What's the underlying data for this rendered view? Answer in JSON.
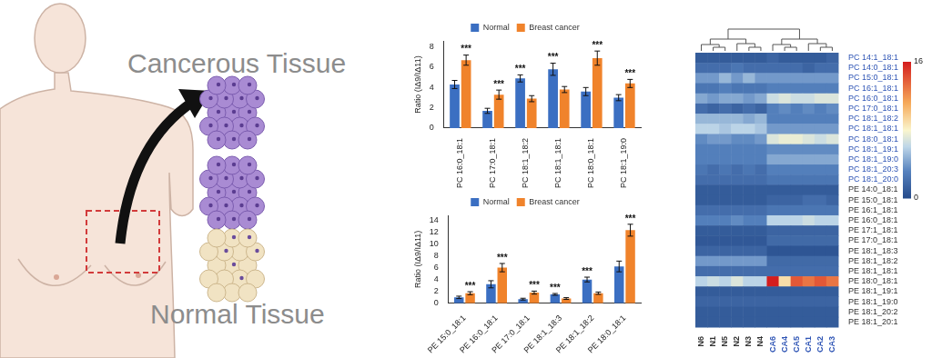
{
  "illustration": {
    "top_label": "Cancerous Tissue",
    "bottom_label": "Normal Tissue"
  },
  "chart_data": [
    {
      "type": "bar",
      "y_label": "Ratio (IΔ9/IΔ11)",
      "categories": [
        "PC 16:0_18:1",
        "PC 17:0_18:1",
        "PC 18:1_18:2",
        "PC 18:1_18:1",
        "PC 18:0_18:1",
        "PC 18:1_19:0"
      ],
      "series": [
        {
          "name": "Normal",
          "color": "#3b6fc2",
          "values": [
            4.3,
            1.7,
            4.9,
            5.8,
            3.6,
            3.0
          ],
          "errors": [
            0.4,
            0.25,
            0.35,
            0.6,
            0.4,
            0.3
          ]
        },
        {
          "name": "Breast cancer",
          "color": "#f0832b",
          "values": [
            6.7,
            3.3,
            2.9,
            3.8,
            6.9,
            4.4
          ],
          "errors": [
            0.5,
            0.45,
            0.3,
            0.3,
            0.7,
            0.4
          ]
        }
      ],
      "annotations": [
        "***",
        "***",
        "***",
        "***",
        "***",
        "***"
      ],
      "ylim": [
        0,
        8.6
      ],
      "yticks": [
        0,
        2,
        4,
        6,
        8
      ],
      "grid": false,
      "legend": "top"
    },
    {
      "type": "bar",
      "y_label": "Ratio (IΔ9/IΔ11)",
      "categories": [
        "PE 15:0_18:1",
        "PE 16:0_18:1",
        "PE 17:0_18:1",
        "PE 18:1_18:3",
        "PE 18:1_18:2",
        "PE 18:0_18:1"
      ],
      "series": [
        {
          "name": "Normal",
          "color": "#3b6fc2",
          "values": [
            1.0,
            3.2,
            0.7,
            1.5,
            4.0,
            6.2
          ],
          "errors": [
            0.2,
            0.6,
            0.15,
            0.15,
            0.4,
            0.9
          ]
        },
        {
          "name": "Breast cancer",
          "color": "#f0832b",
          "values": [
            1.7,
            6.0,
            1.8,
            0.8,
            1.7,
            12.3
          ],
          "errors": [
            0.25,
            0.7,
            0.25,
            0.15,
            0.2,
            1.0
          ]
        }
      ],
      "annotations": [
        "***",
        "***",
        "***",
        "***",
        "***",
        "***"
      ],
      "ylim": [
        0,
        14.8
      ],
      "yticks": [
        0,
        2,
        4,
        6,
        8,
        10,
        12,
        14
      ],
      "grid": false,
      "legend": "top"
    },
    {
      "type": "heatmap",
      "columns": [
        {
          "label": "N6",
          "color": "#333333"
        },
        {
          "label": "N1",
          "color": "#333333"
        },
        {
          "label": "N5",
          "color": "#333333"
        },
        {
          "label": "N2",
          "color": "#333333"
        },
        {
          "label": "N3",
          "color": "#333333"
        },
        {
          "label": "N4",
          "color": "#333333"
        },
        {
          "label": "CA6",
          "color": "#2f55b5"
        },
        {
          "label": "CA4",
          "color": "#2f55b5"
        },
        {
          "label": "CA5",
          "color": "#2f55b5"
        },
        {
          "label": "CA1",
          "color": "#2f55b5"
        },
        {
          "label": "CA2",
          "color": "#2f55b5"
        },
        {
          "label": "CA3",
          "color": "#2f55b5"
        }
      ],
      "rows": [
        {
          "label": "PC 14:1_18:1",
          "color": "#2f55b5"
        },
        {
          "label": "PC 14:0_18:1",
          "color": "#2f55b5"
        },
        {
          "label": "PC 15:0_18:1",
          "color": "#2f55b5"
        },
        {
          "label": "PC 16:1_18:1",
          "color": "#2f55b5"
        },
        {
          "label": "PC 16:0_18:1",
          "color": "#2f55b5"
        },
        {
          "label": "PC 17:0_18:1",
          "color": "#2f55b5"
        },
        {
          "label": "PC 18:1_18:2",
          "color": "#2f55b5"
        },
        {
          "label": "PC 18:1_18:1",
          "color": "#2f55b5"
        },
        {
          "label": "PC 18:0_18:1",
          "color": "#2f55b5"
        },
        {
          "label": "PC 18:1_19:1",
          "color": "#2f55b5"
        },
        {
          "label": "PC 18:1_19:0",
          "color": "#2f55b5"
        },
        {
          "label": "PC 18:1_20:3",
          "color": "#2f55b5"
        },
        {
          "label": "PC 18:1_20:0",
          "color": "#2f55b5"
        },
        {
          "label": "PE 14:0_18:1",
          "color": "#333333"
        },
        {
          "label": "PE 15:0_18:1",
          "color": "#333333"
        },
        {
          "label": "PE 16:1_18:1",
          "color": "#333333"
        },
        {
          "label": "PE 16:0_18:1",
          "color": "#333333"
        },
        {
          "label": "PE 17:1_18:1",
          "color": "#333333"
        },
        {
          "label": "PE 17:0_18:1",
          "color": "#333333"
        },
        {
          "label": "PE 18:1_18:3",
          "color": "#333333"
        },
        {
          "label": "PE 18:1_18:2",
          "color": "#333333"
        },
        {
          "label": "PE 18:1_18:1",
          "color": "#333333"
        },
        {
          "label": "PE 18:0_18:1",
          "color": "#333333"
        },
        {
          "label": "PE 18:1_19:1",
          "color": "#333333"
        },
        {
          "label": "PE 18:1_19:0",
          "color": "#333333"
        },
        {
          "label": "PE 18:1_20:2",
          "color": "#333333"
        },
        {
          "label": "PE 18:1_20:1",
          "color": "#333333"
        }
      ],
      "cells": [
        [
          1,
          1,
          1,
          1,
          1,
          1,
          1.5,
          1,
          1,
          1,
          1,
          1.5
        ],
        [
          2,
          2,
          2,
          2.5,
          2,
          2,
          2,
          2,
          2,
          1.5,
          2,
          2
        ],
        [
          4,
          4,
          5,
          4,
          5,
          4,
          4,
          4,
          4,
          4,
          4,
          4
        ],
        [
          2.5,
          2.5,
          3,
          2.5,
          2.5,
          2.5,
          3,
          3,
          3,
          3,
          3,
          3
        ],
        [
          4.5,
          4,
          4.5,
          4.5,
          4,
          4.5,
          6.5,
          7,
          6.5,
          6.5,
          7,
          7
        ],
        [
          2,
          1.5,
          2,
          1.5,
          2,
          1.5,
          3,
          3.5,
          3,
          3.5,
          3,
          3.5
        ],
        [
          5,
          5,
          5,
          5,
          4.5,
          5,
          3,
          3,
          3,
          3,
          3,
          3
        ],
        [
          6,
          6,
          5.5,
          6,
          6,
          5.5,
          4,
          4,
          4,
          4,
          4,
          4
        ],
        [
          3.5,
          4,
          4,
          3.5,
          3.5,
          4,
          7,
          7.5,
          7.5,
          7,
          6.5,
          7
        ],
        [
          3,
          3,
          3,
          3,
          3,
          3,
          3.5,
          3.5,
          3.5,
          3.5,
          3.5,
          3.5
        ],
        [
          3,
          3,
          3,
          3,
          3,
          3,
          4.5,
          4.5,
          4.5,
          4.5,
          4.5,
          4.5
        ],
        [
          2.5,
          2,
          2.5,
          2,
          2.5,
          2,
          3,
          3,
          3,
          3,
          3,
          3
        ],
        [
          2,
          2,
          2,
          2,
          2,
          2,
          2.5,
          2.5,
          2.5,
          2.5,
          2.5,
          2.5
        ],
        [
          1,
          1,
          1,
          1,
          1,
          1,
          1,
          1,
          1,
          1,
          1,
          1
        ],
        [
          1,
          1,
          1,
          1,
          1,
          1,
          1.5,
          1.5,
          1.5,
          2,
          2,
          1.5
        ],
        [
          2,
          2,
          2,
          2,
          2,
          2,
          2.5,
          2.5,
          2.5,
          2.5,
          2.5,
          2.5
        ],
        [
          3,
          3,
          3,
          3.5,
          3,
          3,
          6,
          6,
          6,
          6.5,
          6,
          6
        ],
        [
          1,
          1,
          1,
          1,
          1,
          1,
          1.5,
          1.5,
          1.5,
          1.5,
          1.5,
          1.5
        ],
        [
          0.8,
          0.8,
          0.8,
          0.8,
          0.8,
          0.8,
          1.8,
          1.8,
          1.8,
          1.8,
          1.8,
          1.8
        ],
        [
          1.5,
          1.5,
          1.5,
          1.5,
          1.5,
          1.5,
          0.6,
          0.6,
          0.6,
          0.6,
          0.6,
          0.6
        ],
        [
          4,
          4,
          4,
          4,
          4,
          4,
          1.8,
          1.8,
          1.8,
          1.8,
          1.8,
          1.8
        ],
        [
          2,
          2,
          2,
          2,
          2,
          2,
          2,
          2,
          2,
          2,
          2,
          2
        ],
        [
          6,
          6.5,
          6,
          7,
          6,
          6,
          16,
          9,
          14,
          13,
          14,
          13
        ],
        [
          1,
          1,
          1,
          1,
          1,
          1,
          1,
          1,
          1,
          1,
          1,
          1
        ],
        [
          1.5,
          1.5,
          1.5,
          1.5,
          1.5,
          1.5,
          1.5,
          1.5,
          1.5,
          1.5,
          1.5,
          1.5
        ],
        [
          1,
          1,
          1,
          1,
          1,
          1,
          1,
          1,
          1,
          1,
          1,
          1
        ],
        [
          1,
          1,
          1,
          1,
          1,
          1,
          1,
          1,
          1,
          1,
          1,
          1
        ]
      ],
      "colorbar_range": [
        0,
        16
      ],
      "colorbar_ticks": [
        0,
        16
      ]
    }
  ]
}
